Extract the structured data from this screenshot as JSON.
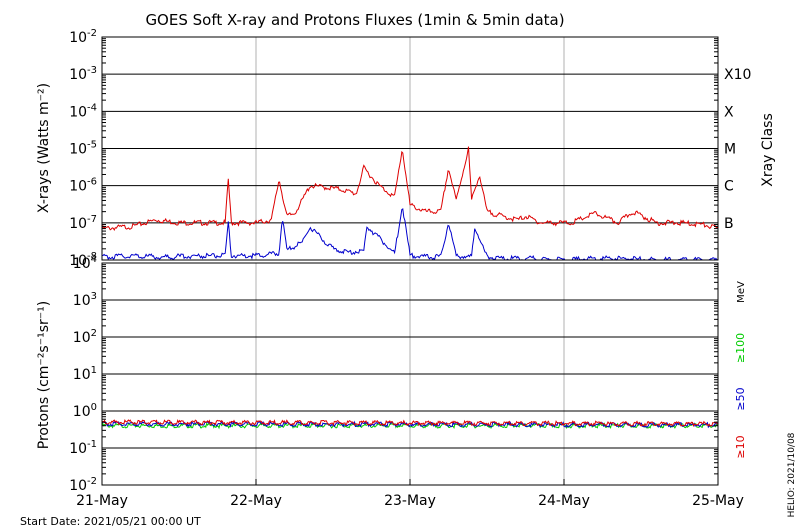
{
  "chart_data": [
    {
      "type": "line",
      "title": "GOES Soft X-ray and Protons Fluxes   (1min & 5min data)",
      "ylabel": "X-rays (Watts m⁻²)",
      "y2label": "Xray Class",
      "yscale": "log",
      "ylim": [
        1e-08,
        0.01
      ],
      "y_ticks": [
        {
          "value": 0.01,
          "base": "10",
          "exp": "-2"
        },
        {
          "value": 0.001,
          "base": "10",
          "exp": "-3"
        },
        {
          "value": 0.0001,
          "base": "10",
          "exp": "-4"
        },
        {
          "value": 1e-05,
          "base": "10",
          "exp": "-5"
        },
        {
          "value": 1e-06,
          "base": "10",
          "exp": "-6"
        },
        {
          "value": 1e-07,
          "base": "10",
          "exp": "-7"
        },
        {
          "value": 1e-08,
          "base": "10",
          "exp": "-8"
        }
      ],
      "class_labels": [
        {
          "label": "X10",
          "value": 0.001
        },
        {
          "label": "X",
          "value": 0.0001
        },
        {
          "label": "M",
          "value": 1e-05
        },
        {
          "label": "C",
          "value": 1e-06
        },
        {
          "label": "B",
          "value": 1e-07
        }
      ],
      "series": [
        {
          "color": "#dd0000",
          "x": [
            0.0,
            0.2,
            0.35,
            0.5,
            0.7,
            0.8,
            0.82,
            0.84,
            0.9,
            1.0,
            1.1,
            1.15,
            1.2,
            1.25,
            1.3,
            1.35,
            1.45,
            1.55,
            1.65,
            1.7,
            1.8,
            1.9,
            1.95,
            2.0,
            2.1,
            2.2,
            2.25,
            2.3,
            2.38,
            2.4,
            2.45,
            2.5,
            2.6,
            2.7,
            2.75,
            2.85,
            2.95,
            3.05,
            3.2,
            3.35,
            3.45,
            3.6,
            3.75,
            3.9,
            4.0
          ],
          "values": [
            7e-08,
            8e-08,
            1.2e-07,
            1e-07,
            1e-07,
            1e-07,
            1.5e-06,
            1e-07,
            1e-07,
            1e-07,
            1.2e-07,
            1.5e-06,
            1.5e-07,
            1.8e-07,
            4e-07,
            1e-06,
            9e-07,
            8e-07,
            6e-07,
            3e-06,
            1e-06,
            5e-07,
            1e-05,
            3e-07,
            2e-07,
            2e-07,
            3e-06,
            4e-07,
            1e-05,
            4e-07,
            2e-06,
            2e-07,
            1.5e-07,
            1.2e-07,
            1.5e-07,
            1e-07,
            1e-07,
            1e-07,
            1.8e-07,
            1e-07,
            2e-07,
            1e-07,
            1e-07,
            9e-08,
            7e-08
          ]
        },
        {
          "color": "#0000cc",
          "x": [
            0.0,
            0.2,
            0.4,
            0.6,
            0.8,
            0.82,
            0.84,
            1.0,
            1.15,
            1.17,
            1.2,
            1.3,
            1.35,
            1.42,
            1.5,
            1.6,
            1.7,
            1.72,
            1.8,
            1.9,
            1.95,
            2.0,
            2.1,
            2.2,
            2.25,
            2.3,
            2.4,
            2.42,
            2.5,
            2.6,
            2.8,
            3.0,
            3.2,
            3.4,
            3.6,
            3.8,
            4.0
          ],
          "values": [
            1.2e-08,
            1.3e-08,
            1.2e-08,
            1.3e-08,
            1.3e-08,
            1e-07,
            1.3e-08,
            1.3e-08,
            1.5e-08,
            1.5e-07,
            1.8e-08,
            3e-08,
            8e-08,
            4e-08,
            2e-08,
            1.6e-08,
            1.8e-08,
            8e-08,
            4e-08,
            1.5e-08,
            3e-07,
            1.3e-08,
            1.2e-08,
            1.2e-08,
            1e-07,
            1.3e-08,
            1.2e-08,
            8e-08,
            1.2e-08,
            1.1e-08,
            1.1e-08,
            1e-08,
            1.1e-08,
            1.1e-08,
            1e-08,
            1e-08,
            1e-08
          ]
        }
      ]
    },
    {
      "type": "line",
      "ylabel": "Protons (cm⁻²s⁻¹sr⁻¹)",
      "yscale": "log",
      "ylim": [
        0.01,
        10000
      ],
      "y_ticks": [
        {
          "value": 10000,
          "base": "10",
          "exp": "4"
        },
        {
          "value": 1000,
          "base": "10",
          "exp": "3"
        },
        {
          "value": 100,
          "base": "10",
          "exp": "2"
        },
        {
          "value": 10,
          "base": "10",
          "exp": "1"
        },
        {
          "value": 1,
          "base": "10",
          "exp": "0"
        },
        {
          "value": 0.1,
          "base": "10",
          "exp": "-1"
        },
        {
          "value": 0.01,
          "base": "10",
          "exp": "-2"
        }
      ],
      "threshold": 10,
      "unit_label": "MeV",
      "series": [
        {
          "name": "≥100",
          "color": "#00cc00",
          "x": [
            0,
            4
          ],
          "values": [
            0.4,
            0.4
          ]
        },
        {
          "name": "≥50",
          "color": "#0000cc",
          "x": [
            0,
            4
          ],
          "values": [
            0.45,
            0.42
          ]
        },
        {
          "name": "≥10",
          "color": "#dd0000",
          "x": [
            0,
            4
          ],
          "values": [
            0.5,
            0.45
          ]
        }
      ]
    }
  ],
  "x_axis": {
    "ticks": [
      "21-May",
      "22-May",
      "23-May",
      "24-May",
      "25-May"
    ]
  },
  "footer": {
    "start_date": "Start Date: 2021/05/21 00:00 UT",
    "stamp": "HELIO: 2021/10/08"
  }
}
